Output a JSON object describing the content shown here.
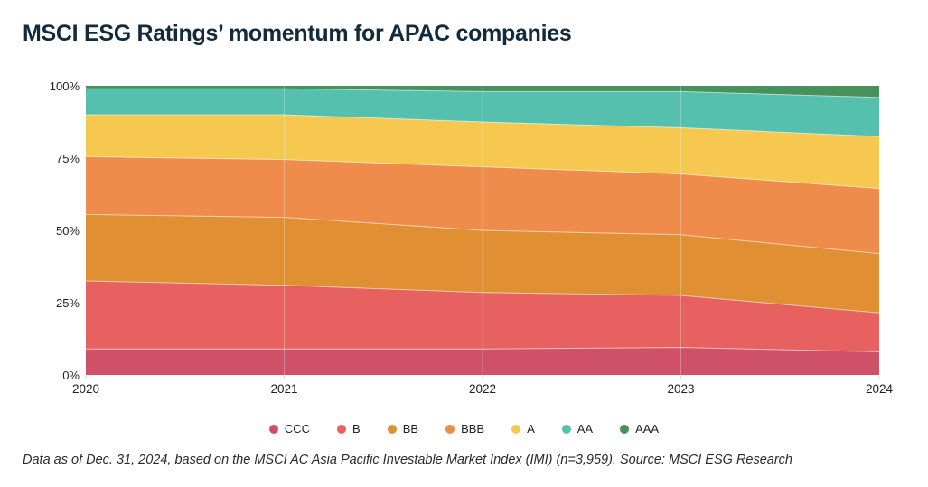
{
  "title": "MSCI ESG Ratings’ momentum for APAC companies",
  "footer": "Data as of Dec. 31, 2024, based on the MSCI AC Asia Pacific Investable Market Index (IMI) (n=3,959). Source: MSCI ESG Research",
  "colors": {
    "title_text": "#112a3c",
    "axis_text": "#1f1f1f",
    "tick_mark": "#d9d9d9",
    "band_separator": "rgba(255,255,255,0.55)"
  },
  "chart_data": {
    "type": "area",
    "stacked": true,
    "unit": "%",
    "title": "MSCI ESG Ratings’ momentum for APAC companies",
    "x": [
      2020,
      2021,
      2022,
      2023,
      2024
    ],
    "x_tick_labels": [
      "2020",
      "2021",
      "2022",
      "2023",
      "2024"
    ],
    "y_ticks": [
      0,
      25,
      50,
      75,
      100
    ],
    "y_tick_labels": [
      "0%",
      "25%",
      "50%",
      "75%",
      "100%"
    ],
    "ylim": [
      0,
      100
    ],
    "grid": "faint vertical lines at interior years",
    "legend_position": "bottom-center",
    "series": [
      {
        "name": "CCC",
        "color": "#ce5168",
        "values": [
          9,
          9,
          9,
          9.5,
          8
        ]
      },
      {
        "name": "B",
        "color": "#e66160",
        "values": [
          23.5,
          22,
          19.5,
          18,
          13.5
        ]
      },
      {
        "name": "BB",
        "color": "#e09033",
        "values": [
          23,
          23.5,
          21.5,
          21,
          20.5
        ]
      },
      {
        "name": "BBB",
        "color": "#f08c4b",
        "values": [
          20,
          20,
          22,
          21,
          22.5
        ]
      },
      {
        "name": "A",
        "color": "#f6c850",
        "values": [
          14.5,
          15.5,
          15.5,
          16,
          18
        ]
      },
      {
        "name": "AA",
        "color": "#54c0ad",
        "values": [
          9,
          9,
          10.5,
          12.5,
          13.5
        ]
      },
      {
        "name": "AAA",
        "color": "#46915c",
        "values": [
          1,
          1,
          2,
          2,
          4
        ]
      }
    ]
  }
}
